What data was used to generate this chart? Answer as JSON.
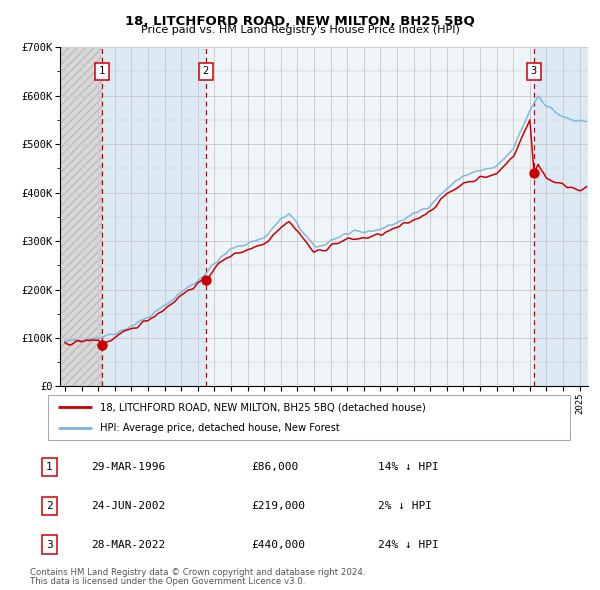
{
  "title": "18, LITCHFORD ROAD, NEW MILTON, BH25 5BQ",
  "subtitle": "Price paid vs. HM Land Registry's House Price Index (HPI)",
  "legend_line1": "18, LITCHFORD ROAD, NEW MILTON, BH25 5BQ (detached house)",
  "legend_line2": "HPI: Average price, detached house, New Forest",
  "footnote1": "Contains HM Land Registry data © Crown copyright and database right 2024.",
  "footnote2": "This data is licensed under the Open Government Licence v3.0.",
  "transactions": [
    {
      "num": 1,
      "date": "29-MAR-1996",
      "price": 86000,
      "price_str": "£86,000",
      "pct": "14% ↓ HPI",
      "x": 1996.24
    },
    {
      "num": 2,
      "date": "24-JUN-2002",
      "price": 219000,
      "price_str": "£219,000",
      "pct": "2% ↓ HPI",
      "x": 2002.48
    },
    {
      "num": 3,
      "date": "28-MAR-2022",
      "price": 440000,
      "price_str": "£440,000",
      "pct": "24% ↓ HPI",
      "x": 2022.24
    }
  ],
  "hpi_color": "#7ab8d9",
  "price_color": "#cc0000",
  "dot_color": "#cc0000",
  "vline_color": "#cc0000",
  "bg_shaded_color": "#dbeaf5",
  "bg_mid_color": "#eef4f8",
  "grid_color": "#cccccc",
  "ylim": [
    0,
    700000
  ],
  "xlim_start": 1993.7,
  "xlim_end": 2025.5,
  "hpi_anchors_x": [
    1994.0,
    1995.0,
    1996.0,
    1997.0,
    1998.0,
    1999.0,
    2000.0,
    2001.0,
    2002.0,
    2003.0,
    2004.0,
    2005.0,
    2006.0,
    2007.0,
    2007.5,
    2008.0,
    2008.5,
    2009.0,
    2009.5,
    2010.0,
    2011.0,
    2012.0,
    2013.0,
    2014.0,
    2015.0,
    2016.0,
    2017.0,
    2018.0,
    2019.0,
    2020.0,
    2021.0,
    2022.0,
    2022.5,
    2023.0,
    2024.0,
    2025.0
  ],
  "hpi_anchors_y": [
    92000,
    97000,
    101000,
    110000,
    125000,
    143000,
    166000,
    195000,
    218000,
    253000,
    283000,
    296000,
    307000,
    345000,
    355000,
    335000,
    310000,
    288000,
    290000,
    302000,
    315000,
    318000,
    325000,
    338000,
    355000,
    375000,
    408000,
    435000,
    445000,
    452000,
    490000,
    570000,
    600000,
    580000,
    555000,
    545000
  ],
  "red_anchors_x": [
    1994.0,
    1995.0,
    1996.0,
    1996.24,
    1997.0,
    1998.0,
    1999.0,
    2000.0,
    2001.0,
    2002.0,
    2002.48,
    2003.0,
    2004.0,
    2005.0,
    2006.0,
    2007.0,
    2007.5,
    2008.0,
    2008.5,
    2009.0,
    2009.5,
    2010.0,
    2011.0,
    2012.0,
    2013.0,
    2014.0,
    2015.0,
    2016.0,
    2017.0,
    2018.0,
    2019.0,
    2020.0,
    2021.0,
    2022.0,
    2022.24,
    2022.5,
    2023.0,
    2024.0,
    2025.0
  ],
  "red_anchors_y": [
    88000,
    93000,
    97000,
    86000,
    100000,
    118000,
    138000,
    160000,
    188000,
    212000,
    219000,
    245000,
    271000,
    283000,
    295000,
    330000,
    340000,
    322000,
    298000,
    277000,
    280000,
    291000,
    303000,
    306000,
    313000,
    327000,
    343000,
    363000,
    396000,
    420000,
    430000,
    438000,
    476000,
    549000,
    440000,
    460000,
    430000,
    415000,
    408000
  ]
}
